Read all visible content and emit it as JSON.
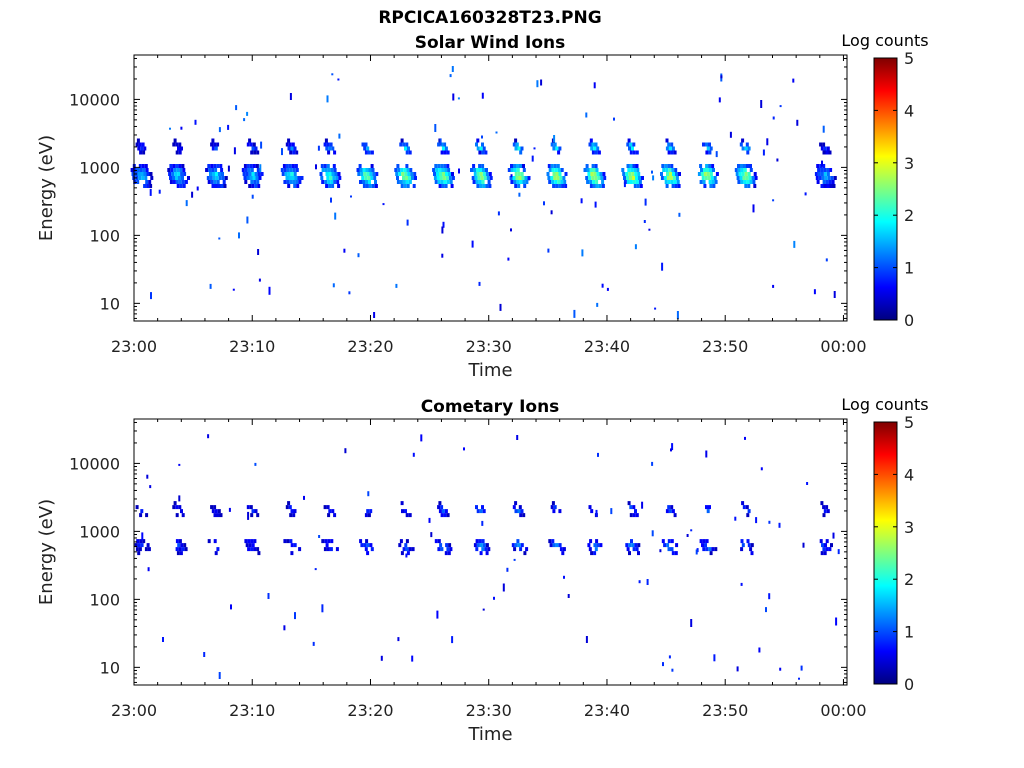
{
  "figure": {
    "title": "RPCICA160328T23.PNG",
    "colorbar_label": "Log counts",
    "colorbar_ticks": [
      "0",
      "1",
      "2",
      "3",
      "4",
      "5"
    ],
    "colormap": [
      "#00007f",
      "#0000ff",
      "#007fff",
      "#00ffff",
      "#7fff7f",
      "#ffff00",
      "#ff7f00",
      "#ff0000",
      "#7f0000"
    ]
  },
  "chart_data": [
    {
      "type": "heatmap",
      "title": "Solar Wind Ions",
      "xlabel": "Time",
      "ylabel": "Energy (eV)",
      "x_ticks": [
        "23:00",
        "23:10",
        "23:20",
        "23:30",
        "23:40",
        "23:50",
        "00:00"
      ],
      "xlim_minutes": [
        0,
        60.3
      ],
      "y_scale": "log",
      "ylim": [
        5.5,
        45000
      ],
      "y_ticks": [
        10,
        100,
        1000,
        10000
      ],
      "y_tick_labels": [
        "10",
        "100",
        "1000",
        "10000"
      ],
      "colorbar": {
        "label": "Log counts",
        "range": [
          0,
          5
        ]
      },
      "sweep_time_minutes": [
        0.5,
        3.6,
        6.8,
        9.9,
        13.2,
        16.4,
        19.6,
        22.8,
        26.0,
        29.2,
        32.4,
        35.6,
        38.8,
        42.0,
        45.2,
        48.4,
        51.6,
        58.3
      ],
      "peak_log_counts": [
        1.8,
        1.8,
        1.9,
        1.8,
        2.2,
        2.4,
        2.6,
        2.8,
        2.9,
        3.0,
        3.0,
        3.0,
        3.1,
        3.1,
        3.0,
        3.0,
        2.8,
        1.6
      ],
      "main_energy_eV": 800,
      "alpha_energy_eV": 2100
    },
    {
      "type": "heatmap",
      "title": "Cometary Ions",
      "xlabel": "Time",
      "ylabel": "Energy (eV)",
      "x_ticks": [
        "23:00",
        "23:10",
        "23:20",
        "23:30",
        "23:40",
        "23:50",
        "00:00"
      ],
      "xlim_minutes": [
        0,
        60.3
      ],
      "y_scale": "log",
      "ylim": [
        5.5,
        45000
      ],
      "y_ticks": [
        10,
        100,
        1000,
        10000
      ],
      "y_tick_labels": [
        "10",
        "100",
        "1000",
        "10000"
      ],
      "colorbar": {
        "label": "Log counts",
        "range": [
          0,
          5
        ]
      },
      "sweep_time_minutes": [
        0.5,
        3.6,
        6.8,
        9.9,
        13.2,
        16.4,
        19.6,
        22.8,
        26.0,
        29.2,
        32.4,
        35.6,
        38.8,
        42.0,
        45.2,
        48.4,
        51.6,
        58.3
      ],
      "peak_log_counts": [
        0.8,
        1.0,
        1.0,
        0.9,
        1.0,
        1.1,
        1.1,
        1.2,
        1.3,
        1.4,
        1.4,
        1.3,
        1.4,
        1.4,
        1.4,
        1.4,
        1.3,
        0.9
      ],
      "main_energy_eV": 650,
      "alpha_energy_eV": 2200
    }
  ]
}
